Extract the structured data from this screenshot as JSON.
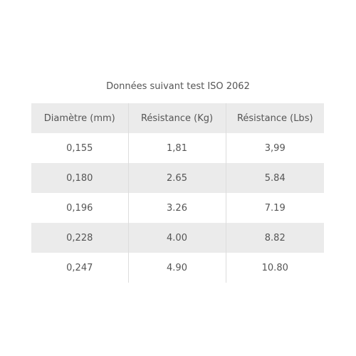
{
  "table": {
    "caption": "Données suivant test ISO 2062",
    "header": [
      "Diamètre (mm)",
      "Résistance (Kg)",
      "Résistance (Lbs)"
    ],
    "rows": [
      [
        "0,155",
        "1,81",
        "3,99"
      ],
      [
        "0,180",
        "2.65",
        "5.84"
      ],
      [
        "0,196",
        "3.26",
        "7.19"
      ],
      [
        "0,228",
        "4.00",
        "8.82"
      ],
      [
        "0,247",
        "4.90",
        "10.80"
      ]
    ]
  }
}
